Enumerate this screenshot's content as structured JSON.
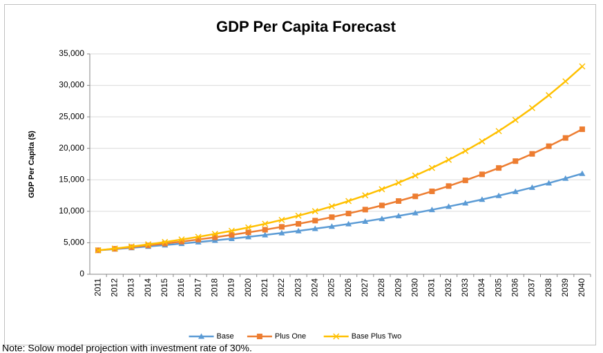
{
  "chart_data": {
    "type": "line",
    "title": "GDP Per Capita Forecast",
    "y_label": "GDP Per Capita ($)",
    "categories": [
      "2011",
      "2012",
      "2013",
      "2014",
      "2015",
      "2016",
      "2017",
      "2018",
      "2019",
      "2020",
      "2021",
      "2022",
      "2023",
      "2024",
      "2025",
      "2026",
      "2027",
      "2028",
      "2029",
      "2030",
      "2031",
      "2032",
      "2033",
      "2034",
      "2035",
      "2036",
      "2037",
      "2038",
      "2039",
      "2040"
    ],
    "series": [
      {
        "name": "Base",
        "color": "#5b9bd5",
        "marker": "triangle",
        "values": [
          3800,
          3990,
          4200,
          4410,
          4630,
          4870,
          5120,
          5380,
          5650,
          5940,
          6240,
          6550,
          6890,
          7240,
          7600,
          7990,
          8400,
          8820,
          9270,
          9740,
          10240,
          10760,
          11300,
          11880,
          12480,
          13120,
          13780,
          14480,
          15220,
          15990
        ]
      },
      {
        "name": "Plus One",
        "color": "#ed7d31",
        "marker": "square",
        "values": [
          3800,
          4040,
          4300,
          4580,
          4870,
          5190,
          5520,
          5870,
          6250,
          6650,
          7070,
          7530,
          8010,
          8520,
          9070,
          9650,
          10270,
          10930,
          11630,
          12370,
          13170,
          14010,
          14910,
          15870,
          16880,
          17970,
          19120,
          20340,
          21650,
          23030
        ]
      },
      {
        "name": "Base Plus Two",
        "color": "#ffc000",
        "marker": "x",
        "values": [
          3800,
          4090,
          4410,
          4750,
          5120,
          5520,
          5940,
          6400,
          6900,
          7430,
          8010,
          8630,
          9300,
          10020,
          10790,
          11630,
          12530,
          13500,
          14540,
          15670,
          16880,
          18180,
          19590,
          21110,
          22740,
          24500,
          26400,
          28440,
          30640,
          33010
        ]
      }
    ],
    "ylim": [
      0,
      35000
    ],
    "yticks": [
      0,
      {
        "value": 5000,
        "label": "5,000"
      },
      {
        "value": 10000,
        "label": "10,000"
      },
      {
        "value": 15000,
        "label": "15,000"
      },
      {
        "value": 20000,
        "label": "20,000"
      },
      {
        "value": 25000,
        "label": "25,000"
      },
      {
        "value": 30000,
        "label": "30,000"
      },
      {
        "value": 35000,
        "label": "35,000"
      }
    ],
    "grid": true,
    "legend": "bottom"
  },
  "note": "Note: Solow model projection with investment rate of 30%."
}
